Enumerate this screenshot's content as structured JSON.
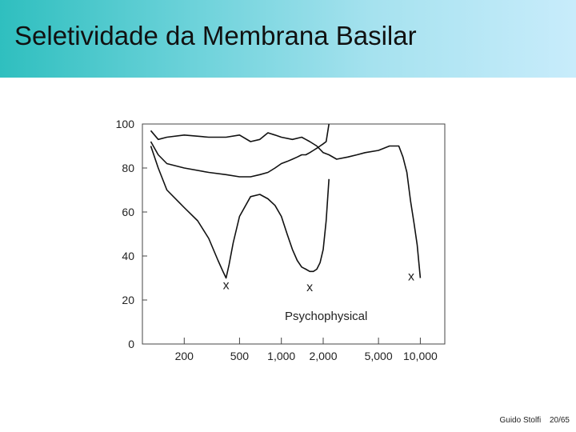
{
  "slide": {
    "title": "Seletividade da Membrana Basilar",
    "author": "Guido Stolfi",
    "page": "20/65"
  },
  "colors": {
    "header_start": "#2fbfbf",
    "header_end": "#c8ecfb",
    "ink": "#111111"
  },
  "chart_data": {
    "type": "line",
    "title": "",
    "xlabel": "",
    "ylabel": "",
    "x_scale": "log",
    "xlim": [
      100,
      15000
    ],
    "ylim": [
      0,
      100
    ],
    "x_ticks": [
      200,
      500,
      1000,
      2000,
      5000,
      10000
    ],
    "x_tick_labels": [
      "200",
      "500",
      "1,000",
      "2,000",
      "5,000",
      "10,000"
    ],
    "y_ticks": [
      0,
      20,
      40,
      60,
      80,
      100
    ],
    "y_tick_labels": [
      "0",
      "20",
      "40",
      "60",
      "80",
      "100"
    ],
    "grid": false,
    "annotations": [
      {
        "text": "Psychophysical",
        "x": 2100,
        "y": 11
      },
      {
        "text": "x",
        "x": 400,
        "y": 25
      },
      {
        "text": "x",
        "x": 1600,
        "y": 24
      },
      {
        "text": "x",
        "x": 8600,
        "y": 29
      }
    ],
    "series": [
      {
        "x": [
          115,
          130,
          150,
          200,
          300,
          400,
          500,
          600,
          700,
          800,
          900,
          1000,
          1200,
          1400,
          1500,
          1600,
          1800,
          2000,
          2200,
          2500,
          3000,
          3500,
          4000,
          5000,
          6000,
          7000,
          7500,
          8000,
          8500,
          9000,
          9500,
          10000
        ],
        "y": [
          97,
          93,
          94,
          95,
          94,
          94,
          95,
          92,
          93,
          96,
          95,
          94,
          93,
          94,
          93,
          92,
          90,
          87,
          86,
          84,
          85,
          86,
          87,
          88,
          90,
          90,
          85,
          78,
          65,
          55,
          45,
          30
        ]
      },
      {
        "x": [
          115,
          130,
          150,
          200,
          300,
          400,
          500,
          600,
          700,
          800,
          900,
          1000,
          1100,
          1200,
          1300,
          1400,
          1500,
          1600,
          1700,
          1800,
          1900,
          2000,
          2100,
          2200
        ],
        "y": [
          92,
          86,
          82,
          80,
          78,
          77,
          76,
          76,
          77,
          78,
          80,
          82,
          83,
          84,
          85,
          86,
          86,
          87,
          88,
          89,
          90,
          91,
          92,
          100
        ]
      },
      {
        "x": [
          115,
          130,
          150,
          200,
          250,
          300,
          350,
          380,
          400,
          420,
          450,
          500,
          600,
          700,
          800,
          900,
          1000,
          1100,
          1200,
          1300,
          1400,
          1500,
          1600,
          1700,
          1800,
          1900,
          2000,
          2100,
          2200
        ],
        "y": [
          90,
          80,
          70,
          62,
          56,
          48,
          38,
          33,
          30,
          36,
          46,
          58,
          67,
          68,
          66,
          63,
          58,
          50,
          43,
          38,
          35,
          34,
          33,
          33,
          34,
          37,
          43,
          56,
          75
        ]
      }
    ]
  }
}
